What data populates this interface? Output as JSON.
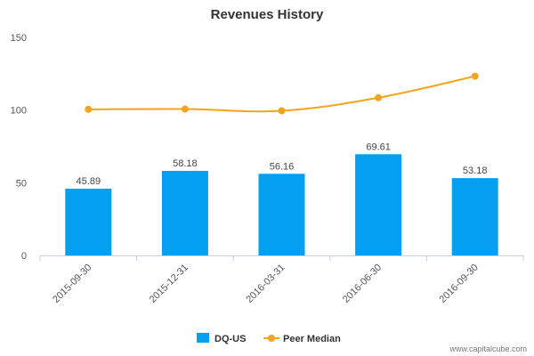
{
  "chart_data": {
    "type": "bar",
    "title": "Revenues History",
    "categories": [
      "2015-09-30",
      "2015-12-31",
      "2016-03-31",
      "2016-06-30",
      "2016-09-30"
    ],
    "series": [
      {
        "name": "DQ-US",
        "type": "bar",
        "values": [
          45.89,
          58.18,
          56.16,
          69.61,
          53.18
        ],
        "data_labels": [
          "45.89",
          "58.18",
          "56.16",
          "69.61",
          "53.18"
        ],
        "color": "#049ff1"
      },
      {
        "name": "Peer Median",
        "type": "line",
        "values": [
          100.5,
          100.7,
          99.5,
          108.5,
          123.3
        ],
        "color": "#f4a41d"
      }
    ],
    "yticks": [
      "0",
      "50",
      "100",
      "150"
    ],
    "ylim": [
      0,
      150
    ],
    "grid": false,
    "legend": "bottom-center"
  },
  "credit": "www.capitalcube.com"
}
